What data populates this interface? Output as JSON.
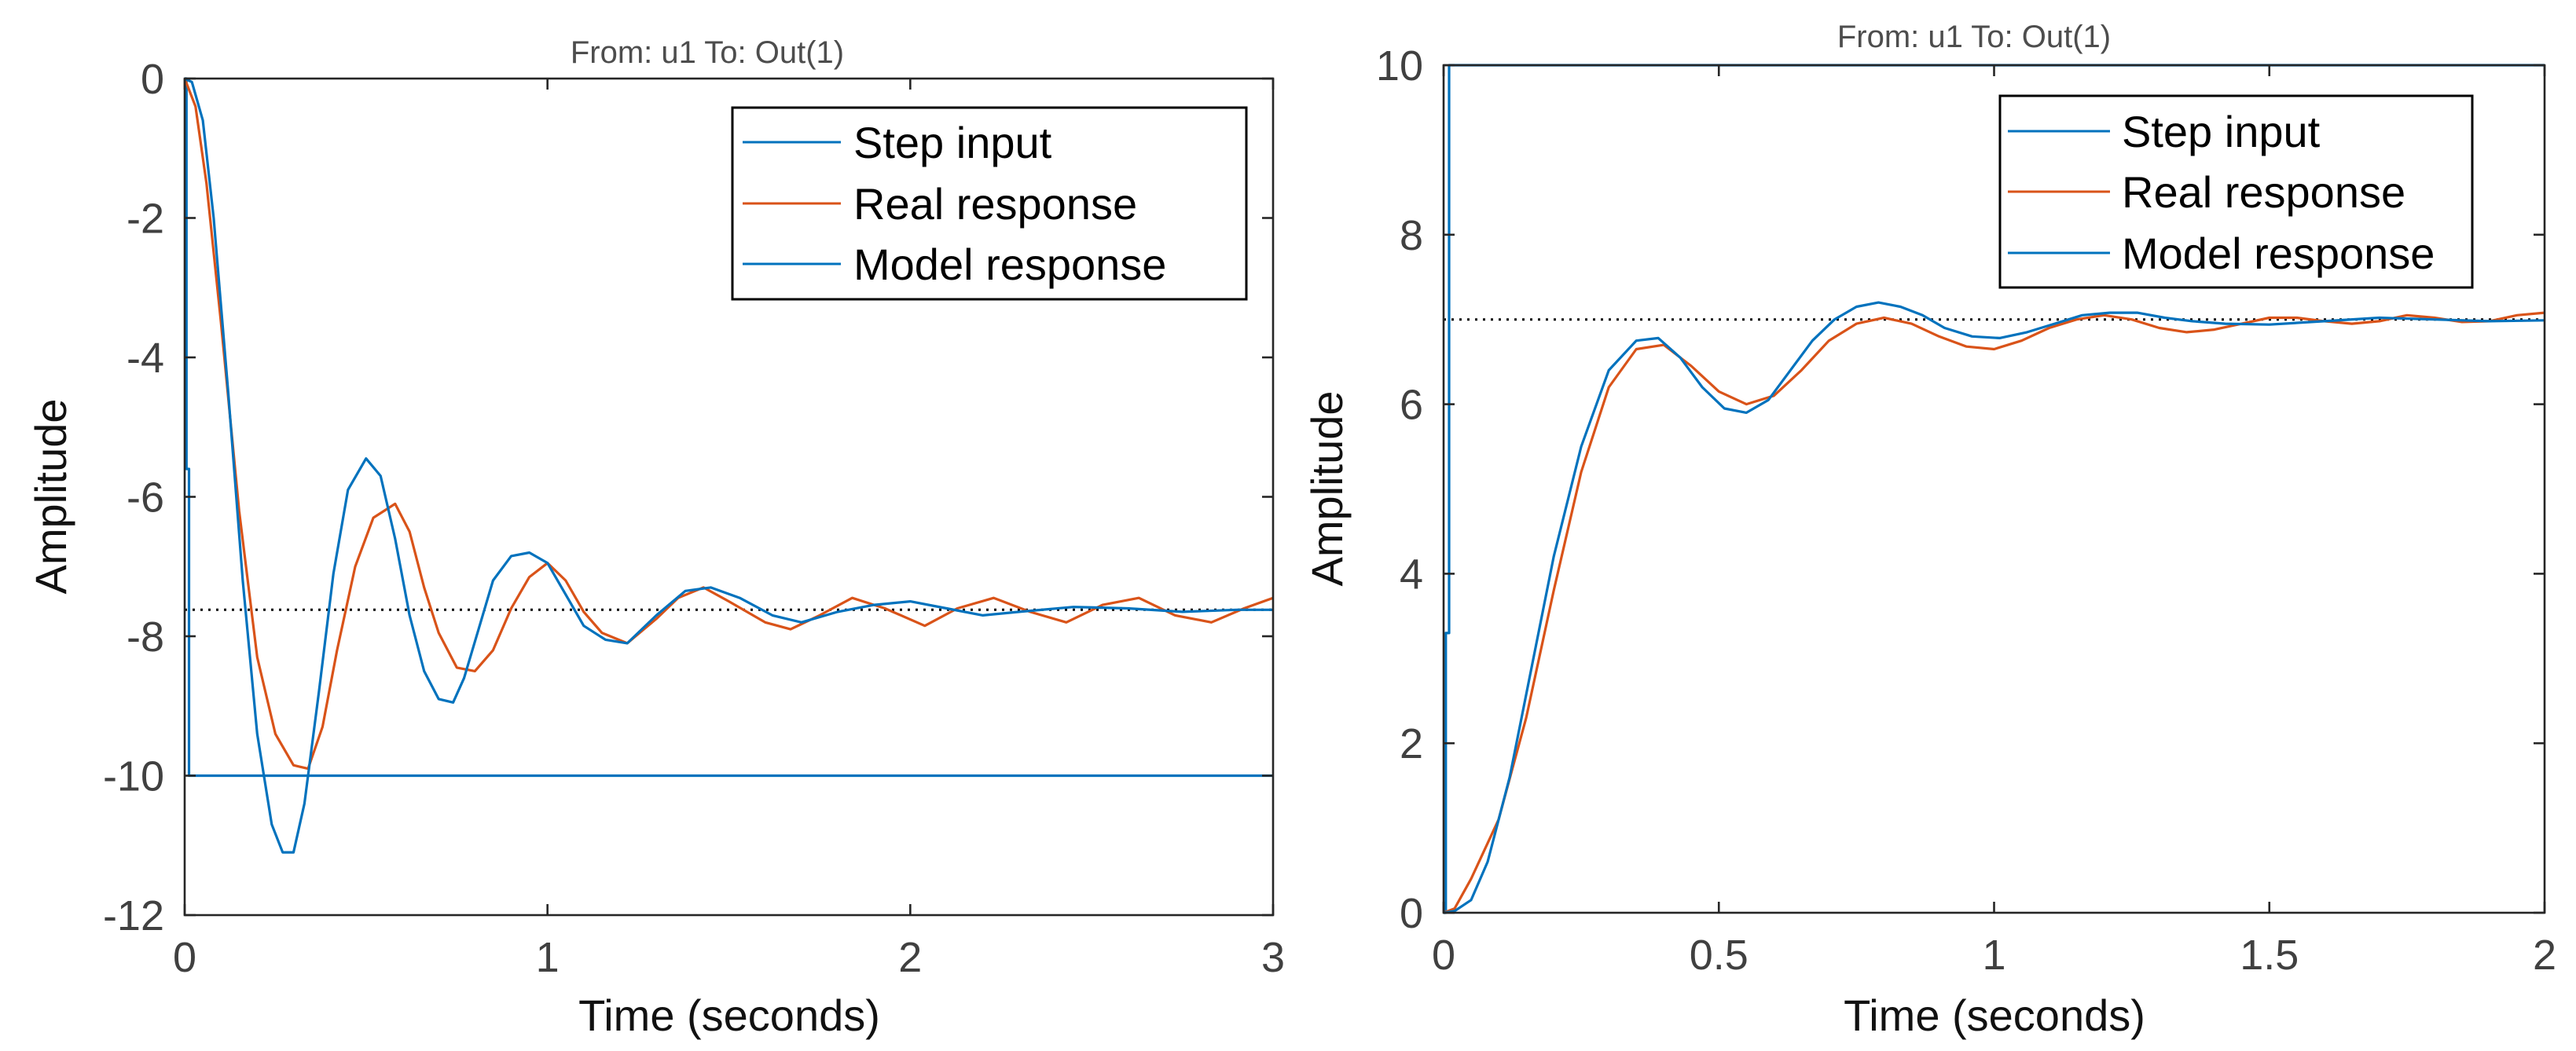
{
  "colors": {
    "step": "#0072bd",
    "real": "#d95319",
    "model": "#0072bd",
    "reference": "#000000",
    "axis": "#262626"
  },
  "chart_data": [
    {
      "type": "line",
      "title": "From: u1  To: Out(1)",
      "xlabel": "Time (seconds)",
      "ylabel": "Amplitude",
      "xlim": [
        0,
        3
      ],
      "ylim": [
        -12,
        0
      ],
      "xticks": [
        0,
        1,
        2,
        3
      ],
      "xtick_labels": [
        "0",
        "1",
        "2",
        "3"
      ],
      "yticks": [
        0,
        -2,
        -4,
        -6,
        -8,
        -10,
        -12
      ],
      "ytick_labels": [
        "0",
        "-2",
        "-4",
        "-6",
        "-8",
        "-10",
        "-12"
      ],
      "legend": [
        "Step input",
        "Real response",
        "Model response"
      ],
      "legend_position": "top-right",
      "steady_state": -7.62,
      "series": [
        {
          "name": "Step input",
          "key": "step",
          "x": [
            0,
            0.005,
            0.005,
            0.012,
            0.012,
            3.0
          ],
          "y": [
            0,
            0,
            -5.6,
            -5.6,
            -10,
            -10
          ]
        },
        {
          "name": "Real response",
          "key": "real",
          "x": [
            0,
            0.03,
            0.06,
            0.1,
            0.15,
            0.2,
            0.25,
            0.3,
            0.34,
            0.38,
            0.42,
            0.47,
            0.52,
            0.58,
            0.62,
            0.66,
            0.7,
            0.75,
            0.8,
            0.85,
            0.9,
            0.95,
            1.0,
            1.05,
            1.1,
            1.15,
            1.22,
            1.3,
            1.36,
            1.43,
            1.5,
            1.6,
            1.67,
            1.75,
            1.84,
            1.93,
            2.04,
            2.13,
            2.23,
            2.33,
            2.43,
            2.53,
            2.63,
            2.73,
            2.83,
            2.92,
            3.0
          ],
          "y": [
            0,
            -0.4,
            -1.5,
            -3.5,
            -6.2,
            -8.3,
            -9.4,
            -9.85,
            -9.9,
            -9.3,
            -8.2,
            -7.0,
            -6.3,
            -6.1,
            -6.5,
            -7.3,
            -7.95,
            -8.45,
            -8.5,
            -8.2,
            -7.6,
            -7.15,
            -6.95,
            -7.2,
            -7.65,
            -7.95,
            -8.1,
            -7.75,
            -7.45,
            -7.3,
            -7.5,
            -7.8,
            -7.9,
            -7.7,
            -7.45,
            -7.6,
            -7.85,
            -7.6,
            -7.45,
            -7.65,
            -7.8,
            -7.55,
            -7.45,
            -7.7,
            -7.8,
            -7.6,
            -7.45
          ]
        },
        {
          "name": "Model response",
          "key": "model",
          "x": [
            0,
            0.02,
            0.05,
            0.08,
            0.12,
            0.16,
            0.2,
            0.24,
            0.27,
            0.3,
            0.33,
            0.37,
            0.41,
            0.45,
            0.5,
            0.54,
            0.58,
            0.62,
            0.66,
            0.7,
            0.74,
            0.77,
            0.81,
            0.85,
            0.9,
            0.95,
            1.0,
            1.05,
            1.1,
            1.16,
            1.22,
            1.3,
            1.38,
            1.45,
            1.53,
            1.62,
            1.7,
            1.8,
            1.9,
            2.0,
            2.1,
            2.2,
            2.3,
            2.45,
            2.6,
            2.75,
            2.9,
            3.0
          ],
          "y": [
            0,
            -0.05,
            -0.6,
            -2.0,
            -4.5,
            -7.2,
            -9.4,
            -10.7,
            -11.1,
            -11.1,
            -10.4,
            -8.8,
            -7.1,
            -5.9,
            -5.45,
            -5.7,
            -6.6,
            -7.7,
            -8.5,
            -8.9,
            -8.95,
            -8.6,
            -7.9,
            -7.2,
            -6.85,
            -6.8,
            -6.95,
            -7.4,
            -7.85,
            -8.05,
            -8.1,
            -7.7,
            -7.35,
            -7.3,
            -7.45,
            -7.7,
            -7.8,
            -7.65,
            -7.55,
            -7.5,
            -7.6,
            -7.7,
            -7.65,
            -7.58,
            -7.6,
            -7.65,
            -7.62,
            -7.62
          ]
        }
      ]
    },
    {
      "type": "line",
      "title": "From: u1  To: Out(1)",
      "xlabel": "Time (seconds)",
      "ylabel": "Amplitude",
      "xlim": [
        0,
        2
      ],
      "ylim": [
        0,
        10
      ],
      "xticks": [
        0,
        0.5,
        1,
        1.5,
        2
      ],
      "xtick_labels": [
        "0",
        "0.5",
        "1",
        "1.5",
        "2"
      ],
      "yticks": [
        0,
        2,
        4,
        6,
        8,
        10
      ],
      "ytick_labels": [
        "0",
        "2",
        "4",
        "6",
        "8",
        "10"
      ],
      "legend": [
        "Step input",
        "Real response",
        "Model response"
      ],
      "legend_position": "top-right",
      "steady_state": 7.0,
      "series": [
        {
          "name": "Step input",
          "key": "step",
          "x": [
            0,
            0.004,
            0.004,
            0.01,
            0.01,
            2.0
          ],
          "y": [
            0,
            0,
            3.3,
            3.3,
            10,
            10
          ]
        },
        {
          "name": "Real response",
          "key": "real",
          "x": [
            0,
            0.02,
            0.05,
            0.1,
            0.15,
            0.2,
            0.25,
            0.3,
            0.35,
            0.4,
            0.45,
            0.5,
            0.55,
            0.6,
            0.65,
            0.7,
            0.75,
            0.8,
            0.85,
            0.9,
            0.95,
            1.0,
            1.05,
            1.1,
            1.15,
            1.2,
            1.25,
            1.3,
            1.35,
            1.4,
            1.45,
            1.5,
            1.55,
            1.6,
            1.65,
            1.7,
            1.75,
            1.8,
            1.85,
            1.9,
            1.95,
            2.0
          ],
          "y": [
            0,
            0.05,
            0.4,
            1.1,
            2.3,
            3.8,
            5.2,
            6.2,
            6.65,
            6.7,
            6.45,
            6.15,
            6.0,
            6.1,
            6.4,
            6.75,
            6.95,
            7.02,
            6.95,
            6.8,
            6.68,
            6.65,
            6.75,
            6.9,
            7.0,
            7.05,
            7.0,
            6.9,
            6.85,
            6.88,
            6.95,
            7.02,
            7.02,
            6.98,
            6.95,
            6.98,
            7.05,
            7.02,
            6.97,
            6.98,
            7.05,
            7.08
          ]
        },
        {
          "name": "Model response",
          "key": "model",
          "x": [
            0,
            0.02,
            0.05,
            0.08,
            0.12,
            0.16,
            0.2,
            0.25,
            0.3,
            0.35,
            0.39,
            0.43,
            0.47,
            0.51,
            0.55,
            0.59,
            0.63,
            0.67,
            0.71,
            0.75,
            0.79,
            0.83,
            0.87,
            0.91,
            0.96,
            1.01,
            1.06,
            1.11,
            1.16,
            1.21,
            1.26,
            1.31,
            1.36,
            1.42,
            1.5,
            1.6,
            1.7,
            1.8,
            1.9,
            2.0
          ],
          "y": [
            0,
            0.02,
            0.15,
            0.6,
            1.6,
            2.9,
            4.2,
            5.5,
            6.4,
            6.75,
            6.78,
            6.55,
            6.2,
            5.95,
            5.9,
            6.05,
            6.4,
            6.75,
            7.0,
            7.15,
            7.2,
            7.15,
            7.05,
            6.9,
            6.8,
            6.78,
            6.85,
            6.95,
            7.05,
            7.08,
            7.08,
            7.02,
            6.98,
            6.95,
            6.94,
            6.98,
            7.02,
            7.0,
            6.98,
            6.99
          ]
        }
      ]
    }
  ]
}
